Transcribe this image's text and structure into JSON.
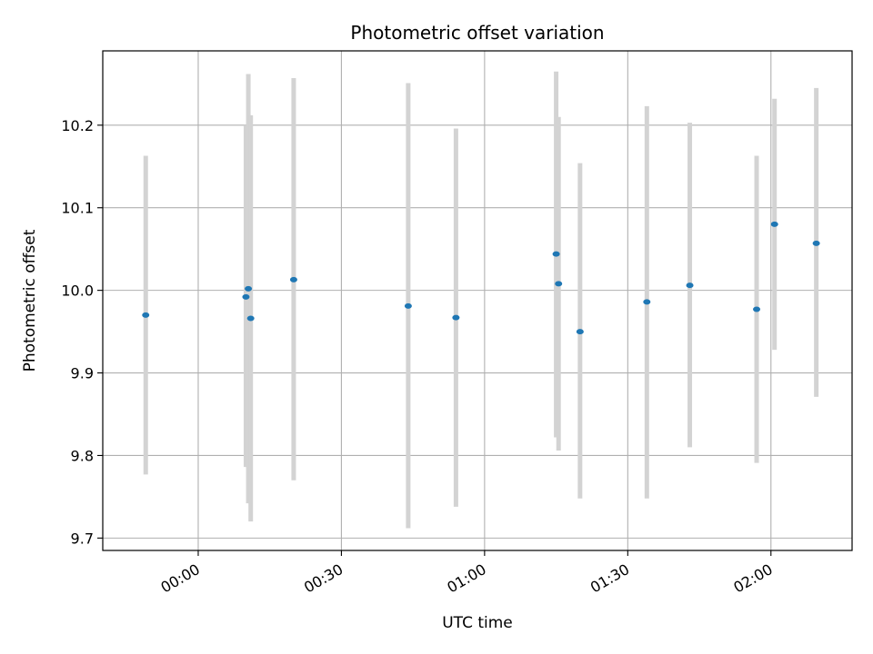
{
  "chart_data": {
    "type": "scatter",
    "title": "Photometric offset variation",
    "xlabel": "UTC time",
    "ylabel": "Photometric offset",
    "x_tick_labels": [
      "00:00",
      "00:30",
      "01:00",
      "01:30",
      "02:00"
    ],
    "x_tick_minutes": [
      0,
      30,
      60,
      90,
      120
    ],
    "y_ticks": [
      9.7,
      9.8,
      9.9,
      10.0,
      10.1,
      10.2
    ],
    "y_tick_labels": [
      "9.7",
      "9.8",
      "9.9",
      "10.0",
      "10.1",
      "10.2"
    ],
    "xlim": [
      "23:40:00",
      "02:17:00"
    ],
    "ylim": [
      9.685,
      10.29
    ],
    "grid": true,
    "points": [
      {
        "x": "23:49:00",
        "y": 9.97,
        "ymin": 9.777,
        "ymax": 10.163
      },
      {
        "x": "00:10:00",
        "y": 9.992,
        "ymin": 9.786,
        "ymax": 10.2
      },
      {
        "x": "00:10:30",
        "y": 10.002,
        "ymin": 9.742,
        "ymax": 10.262
      },
      {
        "x": "00:11:00",
        "y": 9.966,
        "ymin": 9.72,
        "ymax": 10.212
      },
      {
        "x": "00:20:00",
        "y": 10.013,
        "ymin": 9.77,
        "ymax": 10.257
      },
      {
        "x": "00:44:00",
        "y": 9.981,
        "ymin": 9.712,
        "ymax": 10.251
      },
      {
        "x": "00:54:00",
        "y": 9.967,
        "ymin": 9.738,
        "ymax": 10.196
      },
      {
        "x": "01:15:00",
        "y": 10.044,
        "ymin": 9.822,
        "ymax": 10.265
      },
      {
        "x": "01:15:30",
        "y": 10.008,
        "ymin": 9.806,
        "ymax": 10.21
      },
      {
        "x": "01:20:00",
        "y": 9.95,
        "ymin": 9.748,
        "ymax": 10.154
      },
      {
        "x": "01:34:00",
        "y": 9.986,
        "ymin": 9.748,
        "ymax": 10.223
      },
      {
        "x": "01:43:00",
        "y": 10.006,
        "ymin": 9.81,
        "ymax": 10.203
      },
      {
        "x": "01:57:00",
        "y": 9.977,
        "ymin": 9.791,
        "ymax": 10.163
      },
      {
        "x": "02:00:45",
        "y": 10.08,
        "ymin": 9.928,
        "ymax": 10.232
      },
      {
        "x": "02:09:30",
        "y": 10.057,
        "ymin": 9.871,
        "ymax": 10.245
      }
    ],
    "colors": {
      "point": "#1f77b4",
      "errorbar": "#d3d3d3",
      "grid": "#b0b0b0",
      "axes": "#000000"
    }
  }
}
